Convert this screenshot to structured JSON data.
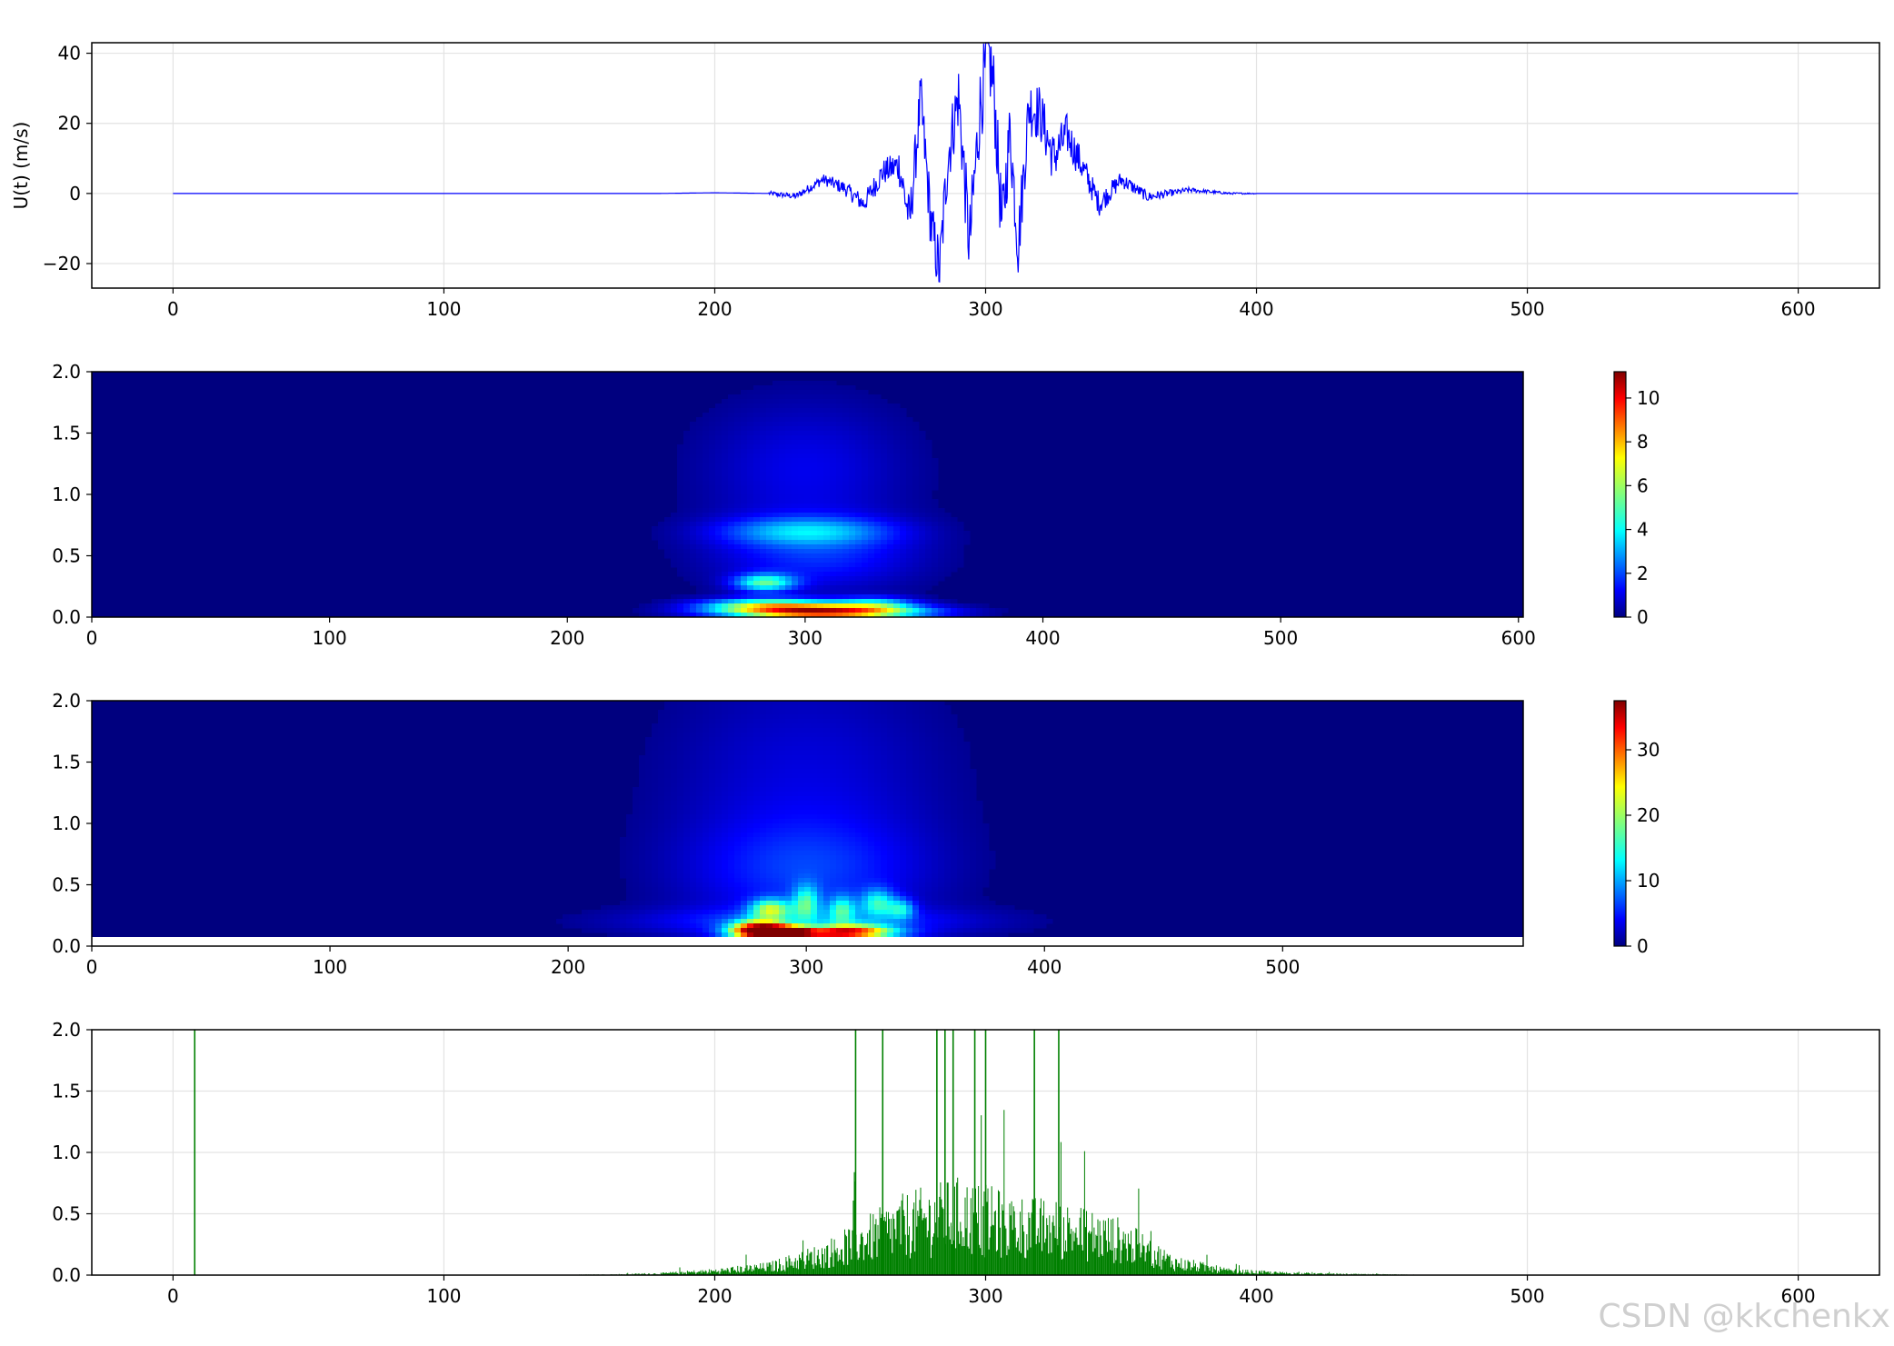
{
  "figure": {
    "watermark": "CSDN @kkchenkx",
    "colors": {
      "signal": "#0000ff",
      "hilbert": "#008000",
      "grid": "#e3e3e3",
      "jet_low": "#00007f",
      "jet_high": "#7f0000"
    }
  },
  "chart_data": [
    {
      "type": "line",
      "title": "",
      "xlabel": "",
      "ylabel": "U(t) (m/s)",
      "xlim": [
        -30,
        630
      ],
      "ylim": [
        -27,
        43
      ],
      "xticks": [
        0,
        100,
        200,
        300,
        400,
        500,
        600
      ],
      "yticks": [
        -20,
        0,
        20,
        40
      ],
      "grid": true,
      "series": [
        {
          "color": "#0000ff",
          "x": [
            0,
            100,
            180,
            200,
            220,
            230,
            240,
            248,
            255,
            262,
            268,
            272,
            276,
            280,
            283,
            286,
            290,
            294,
            298,
            301,
            303,
            306,
            309,
            312,
            316,
            320,
            325,
            330,
            336,
            342,
            350,
            360,
            375,
            390,
            410,
            500,
            600
          ],
          "y": [
            0,
            0,
            0,
            0.2,
            0,
            -0.8,
            4,
            1.5,
            -3,
            6,
            8,
            -8,
            27,
            -10,
            -22,
            10,
            28,
            -15,
            25,
            40,
            30,
            -10,
            18,
            -15,
            25,
            23,
            10,
            17,
            7,
            -3,
            4,
            -1,
            1,
            0,
            0,
            0,
            0
          ]
        }
      ],
      "noise_range": [
        220,
        400
      ],
      "envelope": [
        [
          200,
          0.3
        ],
        [
          230,
          2
        ],
        [
          250,
          5
        ],
        [
          265,
          9
        ],
        [
          275,
          18
        ],
        [
          290,
          22
        ],
        [
          300,
          27
        ],
        [
          310,
          22
        ],
        [
          325,
          16
        ],
        [
          340,
          8
        ],
        [
          355,
          4
        ],
        [
          370,
          2
        ],
        [
          390,
          0.6
        ],
        [
          410,
          0.1
        ]
      ]
    },
    {
      "type": "heatmap",
      "title": "",
      "xlabel": "",
      "ylabel": "",
      "xlim": [
        0,
        602
      ],
      "ylim": [
        0,
        2
      ],
      "xticks": [
        0,
        100,
        200,
        300,
        400,
        500,
        600
      ],
      "yticks": [
        0,
        0.5,
        1.0,
        1.5,
        2.0
      ],
      "colorbar": {
        "label": "",
        "min": 0,
        "max": 11.2,
        "ticks": [
          0,
          2,
          4,
          6,
          8,
          10
        ]
      },
      "blobs": [
        {
          "t": 308,
          "f": 0.04,
          "st": 28,
          "sf": 0.04,
          "v": 9.8
        },
        {
          "t": 283,
          "f": 0.28,
          "st": 9,
          "sf": 0.05,
          "v": 4.6
        },
        {
          "t": 285,
          "f": 0.1,
          "st": 20,
          "sf": 0.04,
          "v": 5.0
        },
        {
          "t": 330,
          "f": 0.11,
          "st": 12,
          "sf": 0.04,
          "v": 3.2
        },
        {
          "t": 300,
          "f": 0.7,
          "st": 25,
          "sf": 0.08,
          "v": 2.6
        },
        {
          "t": 305,
          "f": 0.5,
          "st": 30,
          "sf": 0.2,
          "v": 1.7
        },
        {
          "t": 300,
          "f": 1.2,
          "st": 30,
          "sf": 0.4,
          "v": 1.2
        }
      ]
    },
    {
      "type": "heatmap",
      "title": "",
      "xlabel": "",
      "ylabel": "",
      "xlim": [
        0,
        601
      ],
      "ylim": [
        0,
        2
      ],
      "xticks": [
        0,
        100,
        200,
        300,
        400,
        500
      ],
      "yticks": [
        0,
        0.5,
        1.0,
        1.5,
        2.0
      ],
      "min_freq": 0.07,
      "colorbar": {
        "label": "",
        "min": 0,
        "max": 37.5,
        "ticks": [
          0,
          10,
          20,
          30
        ]
      },
      "blobs": [
        {
          "t": 280,
          "f": 0.13,
          "st": 8,
          "sf": 0.05,
          "v": 34
        },
        {
          "t": 292,
          "f": 0.12,
          "st": 6,
          "sf": 0.03,
          "v": 28
        },
        {
          "t": 305,
          "f": 0.1,
          "st": 20,
          "sf": 0.03,
          "v": 22
        },
        {
          "t": 320,
          "f": 0.13,
          "st": 12,
          "sf": 0.04,
          "v": 17
        },
        {
          "t": 285,
          "f": 0.3,
          "st": 6,
          "sf": 0.06,
          "v": 16
        },
        {
          "t": 300,
          "f": 0.35,
          "st": 4,
          "sf": 0.1,
          "v": 12
        },
        {
          "t": 315,
          "f": 0.3,
          "st": 4,
          "sf": 0.08,
          "v": 11
        },
        {
          "t": 330,
          "f": 0.35,
          "st": 5,
          "sf": 0.08,
          "v": 12
        },
        {
          "t": 340,
          "f": 0.3,
          "st": 4,
          "sf": 0.06,
          "v": 10
        },
        {
          "t": 300,
          "f": 0.6,
          "st": 35,
          "sf": 0.3,
          "v": 5
        },
        {
          "t": 300,
          "f": 1.3,
          "st": 40,
          "sf": 0.7,
          "v": 3.5
        },
        {
          "t": 300,
          "f": 0.2,
          "st": 50,
          "sf": 0.08,
          "v": 6
        }
      ]
    },
    {
      "type": "line",
      "title": "",
      "xlabel": "",
      "ylabel": "",
      "xlim": [
        -30,
        630
      ],
      "ylim": [
        0,
        2
      ],
      "xticks": [
        0,
        100,
        200,
        300,
        400,
        500,
        600
      ],
      "yticks": [
        0,
        0.5,
        1.0,
        1.5,
        2.0
      ],
      "grid": true,
      "series": [
        {
          "color": "#008000",
          "envelope": [
            [
              0,
              0
            ],
            [
              160,
              0.005
            ],
            [
              180,
              0.015
            ],
            [
              200,
              0.04
            ],
            [
              220,
              0.08
            ],
            [
              240,
              0.2
            ],
            [
              250,
              0.3
            ],
            [
              270,
              0.5
            ],
            [
              290,
              0.6
            ],
            [
              310,
              0.5
            ],
            [
              330,
              0.45
            ],
            [
              350,
              0.35
            ],
            [
              370,
              0.12
            ],
            [
              390,
              0.04
            ],
            [
              410,
              0.02
            ],
            [
              430,
              0.01
            ],
            [
              460,
              0.003
            ],
            [
              600,
              0
            ]
          ],
          "spikes_x": [
            8,
            252,
            262,
            282,
            285,
            288,
            296,
            300,
            318,
            327
          ]
        }
      ]
    }
  ]
}
